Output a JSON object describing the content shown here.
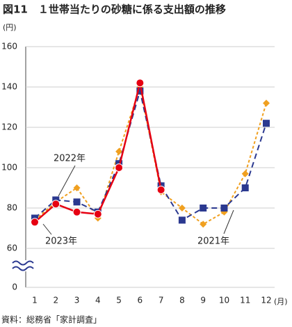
{
  "chart_data": {
    "type": "line",
    "title": "図11　１世帯当たりの砂糖に係る支出額の推移",
    "y_unit": "(円)",
    "x_unit": "(月)",
    "source": "資料：総務省「家計調査」",
    "categories": [
      "1",
      "2",
      "3",
      "4",
      "5",
      "6",
      "7",
      "8",
      "9",
      "10",
      "11",
      "12"
    ],
    "series": [
      {
        "name": "2021年",
        "color": "#f0a020",
        "dash": "4,3",
        "marker": "diamond",
        "values": [
          74,
          83,
          90,
          75,
          108,
          140,
          88,
          80,
          72,
          78,
          97,
          132
        ]
      },
      {
        "name": "2022年",
        "color": "#2b3990",
        "dash": "8,5",
        "marker": "square",
        "values": [
          75,
          84,
          83,
          78,
          102,
          138,
          91,
          74,
          80,
          80,
          90,
          122
        ]
      },
      {
        "name": "2023年",
        "color": "#e60012",
        "dash": "none",
        "marker": "circle",
        "values": [
          73,
          82,
          78,
          77,
          100,
          142,
          89,
          null,
          null,
          null,
          null,
          null
        ]
      }
    ],
    "ylim": [
      0,
      160
    ],
    "axis_break": [
      0,
      60
    ],
    "yticks": [
      0,
      60,
      80,
      100,
      120,
      140,
      160
    ],
    "grid": true
  }
}
